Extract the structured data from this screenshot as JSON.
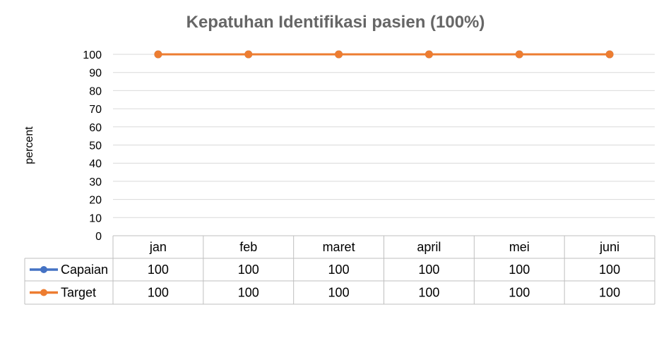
{
  "chart_data": {
    "type": "line",
    "title": "Kepatuhan Identifikasi pasien (100%)",
    "xlabel": "",
    "ylabel": "percent",
    "categories": [
      "jan",
      "feb",
      "maret",
      "april",
      "mei",
      "juni"
    ],
    "ylim": [
      0,
      100
    ],
    "yticks": [
      0,
      10,
      20,
      30,
      40,
      50,
      60,
      70,
      80,
      90,
      100
    ],
    "grid": true,
    "legend": "data-table",
    "series": [
      {
        "name": "Capaian",
        "values": [
          100,
          100,
          100,
          100,
          100,
          100
        ],
        "color": "#4472C4"
      },
      {
        "name": "Target",
        "values": [
          100,
          100,
          100,
          100,
          100,
          100
        ],
        "color": "#ED7D31"
      }
    ]
  }
}
